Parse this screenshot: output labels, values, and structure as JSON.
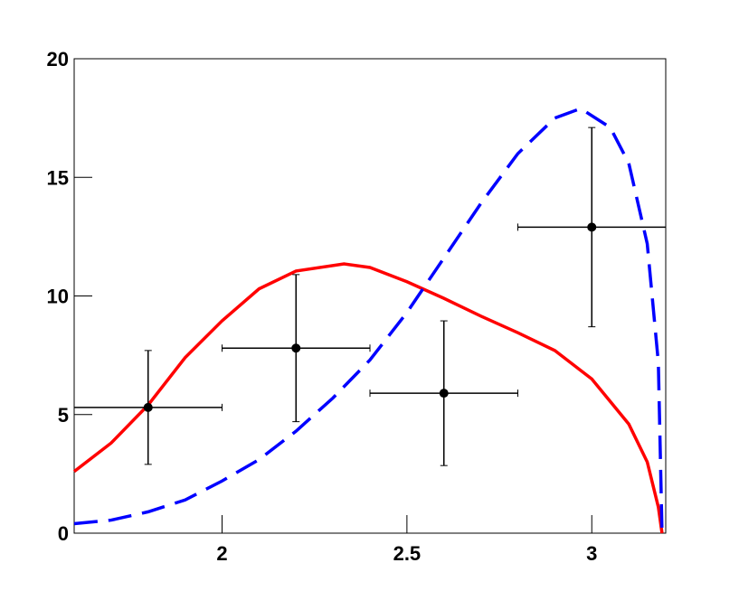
{
  "chart_data": {
    "type": "scatter",
    "xlim": [
      1.6,
      3.2
    ],
    "xticks": [
      2,
      2.5,
      3
    ],
    "ylim": [
      0,
      20
    ],
    "yticks": [
      0,
      5,
      10,
      15,
      20
    ],
    "series": [
      {
        "color": "#ff0000",
        "dash": false,
        "x": [
          1.6,
          1.7,
          1.8,
          1.9,
          2.0,
          2.1,
          2.2,
          2.33,
          2.4,
          2.5,
          2.6,
          2.7,
          2.8,
          2.9,
          3.0,
          3.1,
          3.15,
          3.18,
          3.19
        ],
        "values": [
          2.6,
          3.8,
          5.4,
          7.4,
          8.95,
          10.3,
          11.05,
          11.35,
          11.2,
          10.6,
          9.9,
          9.15,
          8.45,
          7.7,
          6.5,
          4.6,
          3.0,
          1.1,
          0
        ]
      },
      {
        "color": "#0000ff",
        "dash": true,
        "x": [
          1.6,
          1.7,
          1.8,
          1.9,
          2.0,
          2.1,
          2.2,
          2.3,
          2.4,
          2.5,
          2.6,
          2.7,
          2.8,
          2.9,
          2.97,
          3.05,
          3.1,
          3.15,
          3.18,
          3.19
        ],
        "values": [
          0.4,
          0.55,
          0.9,
          1.4,
          2.2,
          3.1,
          4.3,
          5.7,
          7.3,
          9.3,
          11.6,
          13.9,
          16.0,
          17.5,
          17.9,
          17.1,
          15.6,
          12.2,
          7.2,
          0
        ]
      },
      {
        "color": "#000000",
        "markers": true,
        "x": [
          1.8,
          2.2,
          2.6,
          3.0
        ],
        "values": [
          5.3,
          7.8,
          5.9,
          12.9
        ],
        "xerr": [
          0.2,
          0.2,
          0.2,
          0.2
        ],
        "yerr": [
          2.4,
          3.1,
          3.05,
          4.2
        ]
      }
    ]
  }
}
